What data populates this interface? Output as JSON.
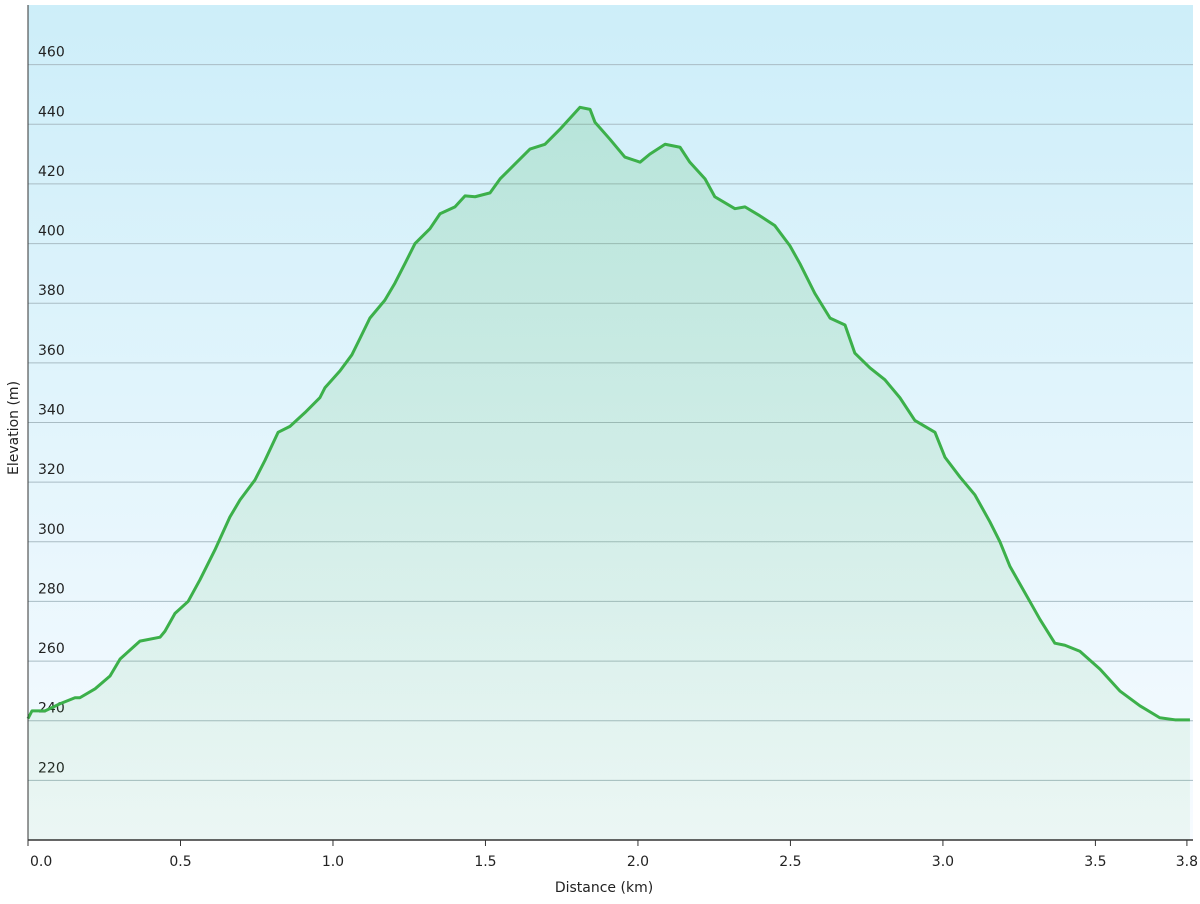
{
  "chart_data": {
    "type": "area",
    "ylabel": "Elevation (m)",
    "xlabel": "Distance  (km)",
    "color": "#3cb04a",
    "grid": true,
    "xlim": [
      0,
      3.82
    ],
    "ylim": [
      200,
      480
    ],
    "xticks": [
      {
        "value": 0,
        "label": "0.0"
      },
      0.5,
      {
        "value": 1,
        "label": "1.0"
      },
      1.5,
      {
        "value": 2,
        "label": "2.0"
      },
      2.5,
      {
        "value": 3,
        "label": "3.0"
      },
      3.5,
      3.8
    ],
    "yticks": [
      220,
      240,
      260,
      280,
      300,
      320,
      340,
      360,
      380,
      400,
      420,
      440,
      460
    ],
    "x": [
      0,
      0.013,
      0.056,
      0.105,
      0.154,
      0.17,
      0.22,
      0.269,
      0.302,
      0.367,
      0.433,
      0.449,
      0.482,
      0.525,
      0.564,
      0.613,
      0.662,
      0.695,
      0.744,
      0.777,
      0.82,
      0.859,
      0.908,
      0.957,
      0.974,
      1.023,
      1.062,
      1.089,
      1.121,
      1.17,
      1.203,
      1.236,
      1.269,
      1.318,
      1.351,
      1.4,
      1.433,
      1.466,
      1.515,
      1.548,
      1.597,
      1.646,
      1.695,
      1.744,
      1.81,
      1.843,
      1.859,
      1.908,
      1.957,
      2.007,
      2.039,
      2.089,
      2.138,
      2.17,
      2.22,
      2.252,
      2.318,
      2.351,
      2.4,
      2.449,
      2.498,
      2.531,
      2.58,
      2.63,
      2.679,
      2.711,
      2.761,
      2.81,
      2.859,
      2.908,
      2.974,
      3.007,
      3.056,
      3.105,
      3.154,
      3.187,
      3.22,
      3.285,
      3.318,
      3.367,
      3.4,
      3.449,
      3.515,
      3.58,
      3.646,
      3.711,
      3.761,
      3.81
    ],
    "values": [
      240.7,
      243.3,
      243.3,
      245.7,
      247.7,
      247.7,
      250.7,
      255,
      260.7,
      266.7,
      268,
      270,
      276,
      280,
      287.3,
      297.3,
      308.3,
      314,
      320.7,
      327.3,
      336.7,
      338.7,
      343.3,
      348.3,
      351.7,
      357.3,
      362.7,
      368.3,
      375,
      381,
      386.7,
      393.3,
      400,
      405,
      410,
      412.3,
      416,
      415.7,
      417,
      421.7,
      426.7,
      431.7,
      433.3,
      438.3,
      445.7,
      445,
      440.7,
      435,
      429,
      427.3,
      430,
      433.3,
      432.3,
      427.3,
      421.7,
      415.7,
      411.7,
      412.3,
      409.3,
      406,
      399.3,
      393.3,
      383.3,
      375,
      372.7,
      363.3,
      358.3,
      354.3,
      348.3,
      340.7,
      336.7,
      328.3,
      321.7,
      315.7,
      306.7,
      300,
      291.7,
      280,
      274,
      266,
      265.3,
      263.3,
      257.3,
      250,
      245,
      241,
      240.3,
      240.3
    ]
  }
}
